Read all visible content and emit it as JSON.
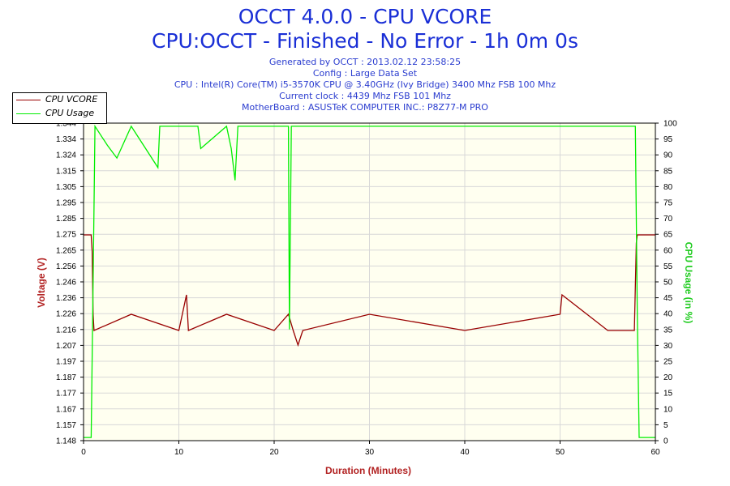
{
  "title": "OCCT 4.0.0 - CPU VCORE",
  "subtitle": "CPU:OCCT - Finished - No Error - 1h 0m 0s",
  "info_lines": [
    "Generated by OCCT : 2013.02.12 23:58:25",
    "Config : Large Data Set",
    "CPU : Intel(R) Core(TM) i5-3570K CPU @ 3.40GHz (Ivy Bridge) 3400 Mhz FSB 100 Mhz",
    "Current clock : 4439 Mhz FSB 101 Mhz",
    "MotherBoard : ASUSTeK COMPUTER INC.: P8Z77-M PRO"
  ],
  "colors": {
    "title": "#1a2fd6",
    "vcore": "#990000",
    "usage": "#00ee00",
    "plot_bg": "#fffff0"
  },
  "chart_data": {
    "type": "line",
    "xlabel": "Duration (Minutes)",
    "ylabel_left": "Voltage (V)",
    "ylabel_right": "CPU Usage (in %)",
    "xlim": [
      0,
      60
    ],
    "ylim_left": [
      1.148,
      1.344
    ],
    "ylim_right": [
      0,
      100
    ],
    "x_ticks": [
      "0",
      "10",
      "20",
      "30",
      "40",
      "50",
      "60"
    ],
    "y_ticks_left": [
      "1.148",
      "1.157",
      "1.167",
      "1.177",
      "1.187",
      "1.197",
      "1.207",
      "1.216",
      "1.226",
      "1.236",
      "1.246",
      "1.256",
      "1.265",
      "1.275",
      "1.285",
      "1.295",
      "1.305",
      "1.315",
      "1.324",
      "1.334",
      "1.344"
    ],
    "y_ticks_right": [
      "0",
      "5",
      "10",
      "15",
      "20",
      "25",
      "30",
      "35",
      "40",
      "45",
      "50",
      "55",
      "60",
      "65",
      "70",
      "75",
      "80",
      "85",
      "90",
      "95",
      "100"
    ],
    "grid": true,
    "legend_position": "top-left",
    "series": [
      {
        "name": "CPU VCORE",
        "axis": "left",
        "x": [
          0,
          0.8,
          0.9,
          1.0,
          1.1,
          5,
          10,
          10.8,
          11,
          15,
          20,
          21.5,
          22,
          22.5,
          23,
          30,
          40,
          50,
          50.2,
          55,
          57.8,
          58,
          58.1,
          60
        ],
        "y": [
          1.275,
          1.275,
          1.265,
          1.226,
          1.216,
          1.226,
          1.216,
          1.238,
          1.216,
          1.226,
          1.216,
          1.226,
          1.216,
          1.207,
          1.216,
          1.226,
          1.216,
          1.226,
          1.238,
          1.216,
          1.216,
          1.27,
          1.275,
          1.275
        ]
      },
      {
        "name": "CPU Usage",
        "axis": "right",
        "x": [
          0,
          0.8,
          1.0,
          1.2,
          2.5,
          3.5,
          5,
          7.8,
          8,
          12,
          12.3,
          15,
          15.5,
          15.9,
          16.2,
          20,
          21.5,
          21.6,
          21.8,
          22,
          30,
          40,
          50,
          57.9,
          58.1,
          58.3,
          60
        ],
        "y": [
          1,
          1,
          50,
          99,
          93,
          89,
          99,
          86,
          99,
          99,
          92,
          99,
          92,
          82,
          99,
          99,
          99,
          35,
          99,
          99,
          99,
          99,
          99,
          99,
          40,
          1,
          1
        ]
      }
    ]
  }
}
